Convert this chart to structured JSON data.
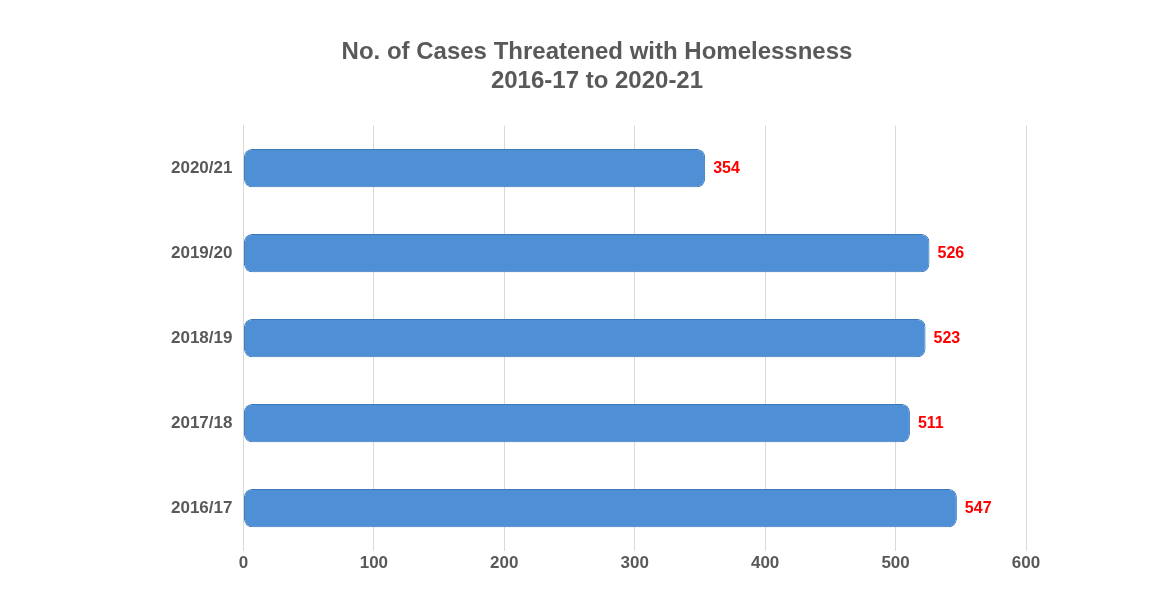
{
  "chart_data": {
    "type": "bar",
    "orientation": "horizontal",
    "title": "No. of Cases Threatened with Homelessness\n2016-17 to 2020-21",
    "categories": [
      "2020/21",
      "2019/20",
      "2018/19",
      "2017/18",
      "2016/17"
    ],
    "values": [
      354,
      526,
      523,
      511,
      547
    ],
    "color": "#4f8fd6",
    "xlim": [
      0,
      600
    ],
    "xticks": [
      0,
      100,
      200,
      300,
      400,
      500,
      600
    ],
    "grid": "x",
    "data_labels": true,
    "legend": false
  }
}
